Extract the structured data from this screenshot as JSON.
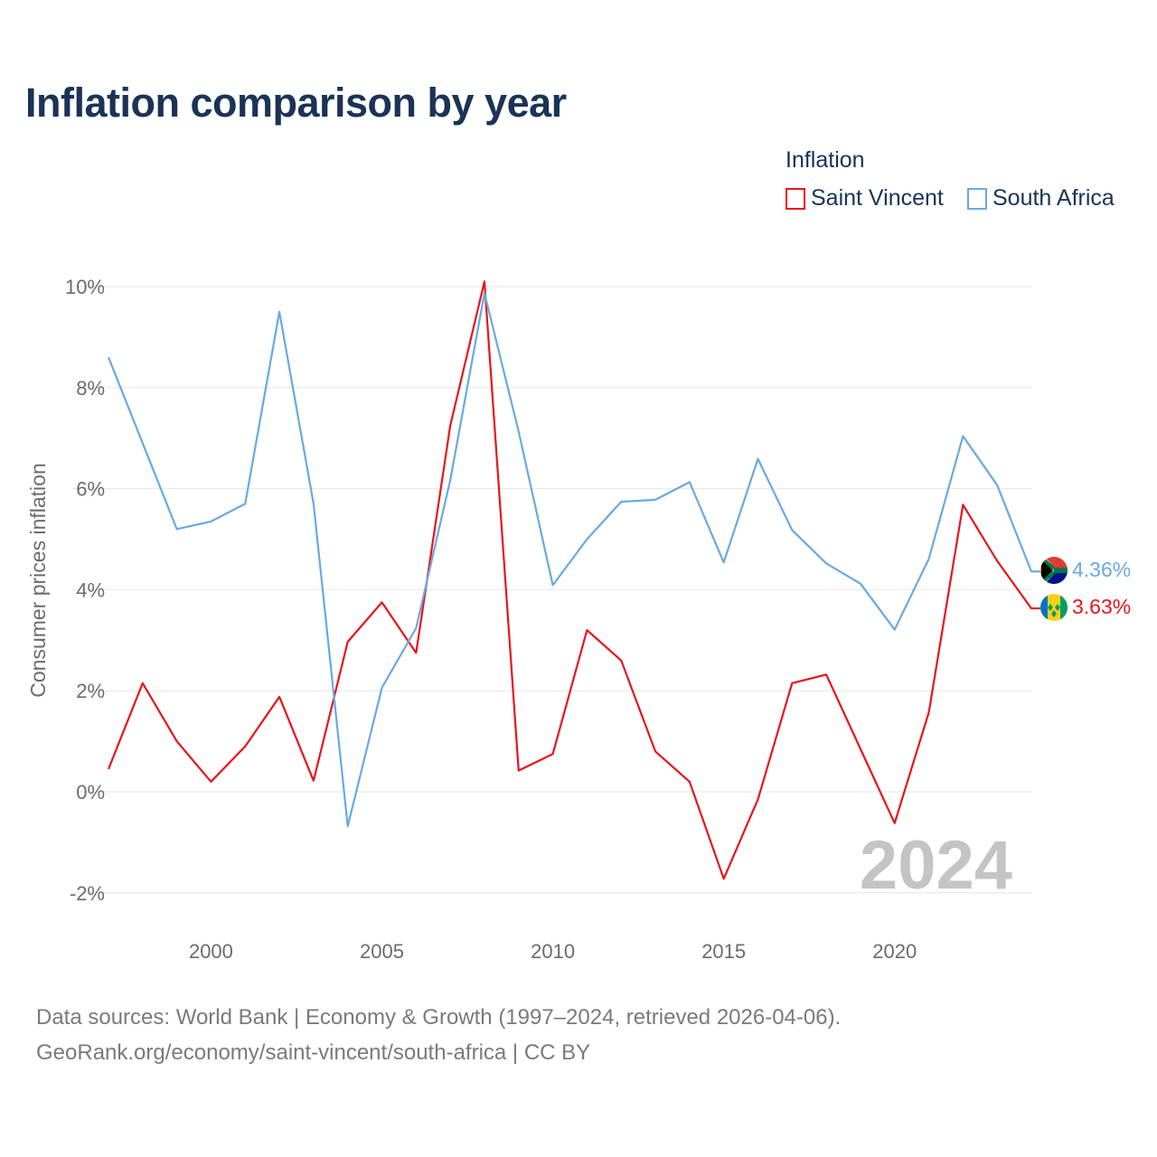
{
  "title": "Inflation comparison by year",
  "legend": {
    "title": "Inflation",
    "items": [
      {
        "label": "Saint Vincent",
        "color": "#e8141b"
      },
      {
        "label": "South Africa",
        "color": "#69a9e3"
      }
    ]
  },
  "watermark_year": "2024",
  "footer": {
    "line1": "Data sources: World Bank | Economy & Growth (1997–2024, retrieved 2026-04-06).",
    "line2": "GeoRank.org/economy/saint-vincent/south-africa | CC BY"
  },
  "chart_data": {
    "type": "line",
    "title": "Inflation comparison by year",
    "xlabel": "",
    "ylabel": "Consumer prices inflation",
    "xlim": [
      1997,
      2024
    ],
    "ylim": [
      -2.5,
      10.5
    ],
    "x_ticks": [
      2000,
      2005,
      2010,
      2015,
      2020
    ],
    "y_ticks": [
      -2,
      0,
      2,
      4,
      6,
      8,
      10
    ],
    "y_tick_labels": [
      "-2%",
      "0%",
      "2%",
      "4%",
      "6%",
      "8%",
      "10%"
    ],
    "grid": true,
    "legend_position": "top-right",
    "x": [
      1997,
      1998,
      1999,
      2000,
      2001,
      2002,
      2003,
      2004,
      2005,
      2006,
      2007,
      2008,
      2009,
      2010,
      2011,
      2012,
      2013,
      2014,
      2015,
      2016,
      2017,
      2018,
      2019,
      2020,
      2021,
      2022,
      2023,
      2024
    ],
    "series": [
      {
        "name": "Saint Vincent",
        "color": "#e8141b",
        "values": [
          0.45,
          2.15,
          1.0,
          0.2,
          0.9,
          1.88,
          0.22,
          2.97,
          3.75,
          2.75,
          7.25,
          10.1,
          0.42,
          0.75,
          3.2,
          2.6,
          0.8,
          0.2,
          -1.72,
          -0.15,
          2.15,
          2.32,
          0.85,
          -0.62,
          1.57,
          5.68,
          4.57,
          3.63
        ],
        "end_label": "3.63%"
      },
      {
        "name": "South Africa",
        "color": "#69a9e3",
        "values": [
          8.6,
          6.9,
          5.2,
          5.35,
          5.7,
          9.5,
          5.7,
          -0.68,
          2.06,
          3.24,
          6.17,
          9.87,
          7.13,
          4.09,
          5.0,
          5.74,
          5.78,
          6.13,
          4.54,
          6.59,
          5.18,
          4.52,
          4.12,
          3.21,
          4.61,
          7.04,
          6.07,
          4.36
        ],
        "end_label": "4.36%"
      }
    ]
  }
}
